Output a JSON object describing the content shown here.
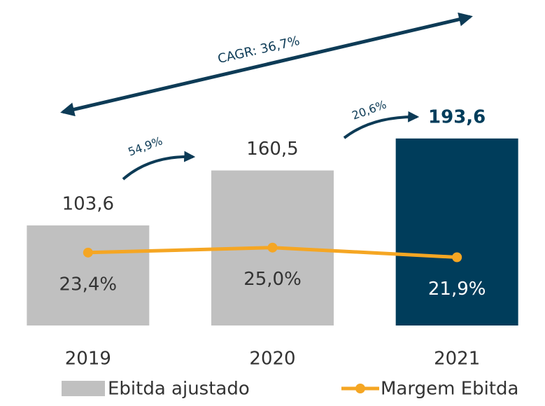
{
  "chart_data": {
    "type": "bar-line",
    "categories": [
      "2019",
      "2020",
      "2021"
    ],
    "series": [
      {
        "name": "Ebitda ajustado",
        "type": "bar",
        "colors": [
          "#c0c0c0",
          "#c0c0c0",
          "#003d5b"
        ],
        "color": "#c0c0c0",
        "values": [
          103.6,
          160.5,
          193.6
        ],
        "value_labels": [
          "103,6",
          "160,5",
          "193,6"
        ]
      },
      {
        "name": "Margem Ebitda",
        "type": "line",
        "axis": "y2",
        "color": "#f5a623",
        "values": [
          23.4,
          25.0,
          21.9
        ],
        "value_labels": [
          "23,4%",
          "25,0%",
          "21,9%"
        ]
      }
    ],
    "annotations": [
      "CAGR: 36,7%",
      "54,9%",
      "20,6%"
    ],
    "ylim": [
      0,
      200
    ],
    "y2lim": [
      0,
      62
    ]
  }
}
